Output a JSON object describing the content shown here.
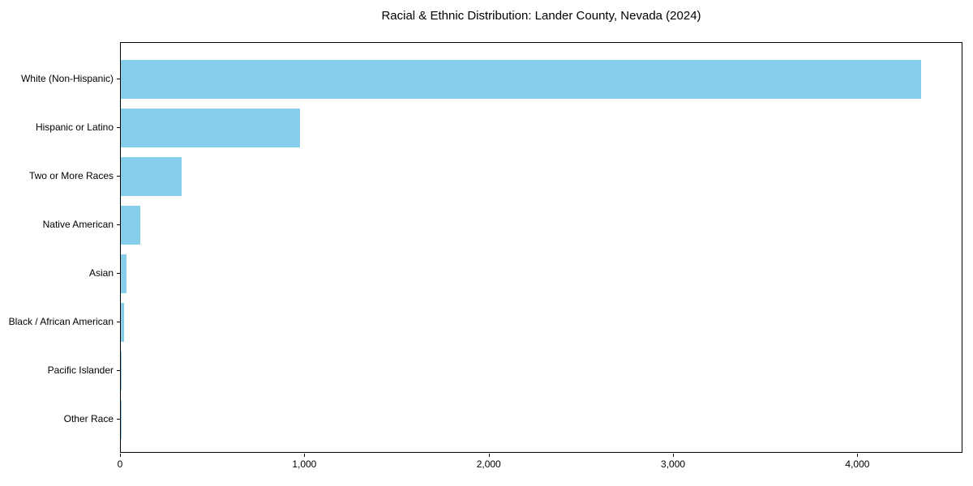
{
  "title": "Racial & Ethnic Distribution: Lander County, Nevada (2024)",
  "colors": {
    "bar": "#87CEEB",
    "axis": "#000000",
    "text": "#000000",
    "background": "#FFFFFF"
  },
  "chart_data": {
    "type": "bar",
    "orientation": "horizontal",
    "title": "Racial & Ethnic Distribution: Lander County, Nevada (2024)",
    "xlabel": "",
    "ylabel": "",
    "categories": [
      "White (Non-Hispanic)",
      "Hispanic or Latino",
      "Two or More Races",
      "Native American",
      "Asian",
      "Black / African American",
      "Pacific Islander",
      "Other Race"
    ],
    "values": [
      4350,
      975,
      330,
      105,
      30,
      18,
      4,
      2
    ],
    "xlim": [
      0,
      4570
    ],
    "xticks": [
      0,
      1000,
      2000,
      3000,
      4000
    ],
    "xtick_labels": [
      "0",
      "1,000",
      "2,000",
      "3,000",
      "4,000"
    ],
    "grid": false,
    "legend": null,
    "bar_color": "#87CEEB"
  }
}
